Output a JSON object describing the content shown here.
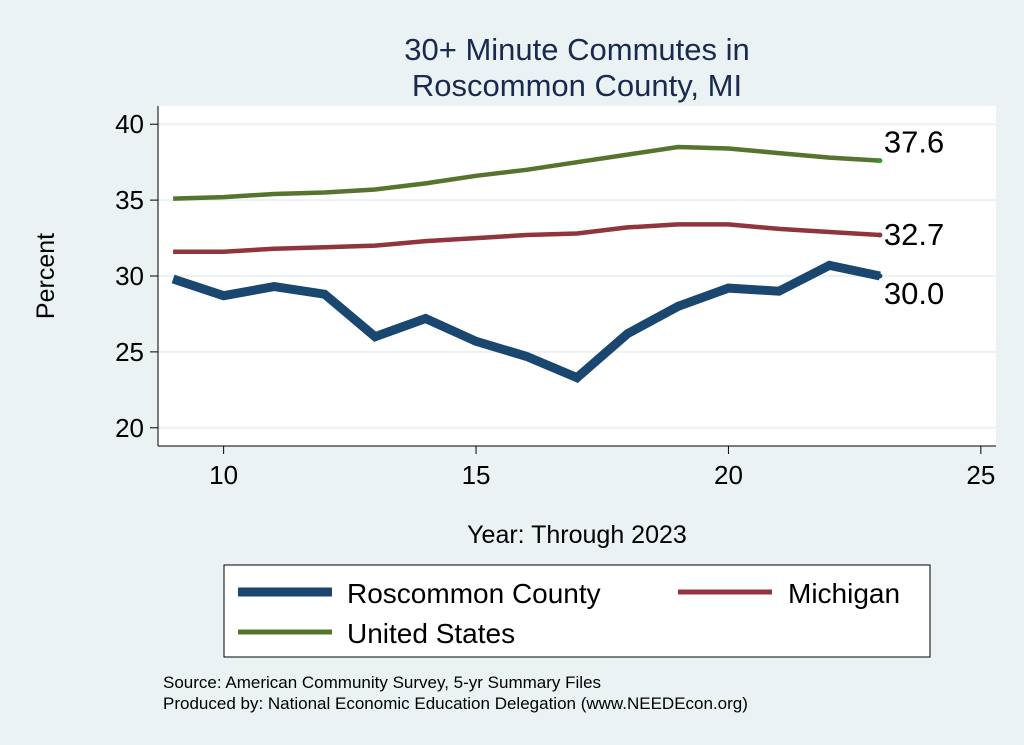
{
  "chart_data": {
    "type": "line",
    "title_lines": [
      "30+ Minute Commutes in",
      "Roscommon County, MI"
    ],
    "xlabel": "Year: Through 2023",
    "ylabel": "Percent",
    "xlim": [
      8.7,
      25.3
    ],
    "ylim": [
      18.8,
      41.2
    ],
    "xticks": [
      10,
      15,
      20,
      25
    ],
    "yticks": [
      20,
      25,
      30,
      35,
      40
    ],
    "grid": true,
    "legend_position": "bottom",
    "series": [
      {
        "name": "Roscommon County",
        "color": "#1a476f",
        "x": [
          9,
          10,
          11,
          12,
          13,
          14,
          15,
          16,
          17,
          18,
          19,
          20,
          21,
          22,
          23
        ],
        "values": [
          29.8,
          28.7,
          29.3,
          28.8,
          26.0,
          27.2,
          25.7,
          24.7,
          23.3,
          26.2,
          28.0,
          29.2,
          29.0,
          30.7,
          30.0
        ],
        "end_label": "30.0"
      },
      {
        "name": "Michigan",
        "color": "#90353b",
        "x": [
          9,
          10,
          11,
          12,
          13,
          14,
          15,
          16,
          17,
          18,
          19,
          20,
          21,
          22,
          23
        ],
        "values": [
          31.6,
          31.6,
          31.8,
          31.9,
          32.0,
          32.3,
          32.5,
          32.7,
          32.8,
          33.2,
          33.4,
          33.4,
          33.1,
          32.9,
          32.7
        ],
        "end_label": "32.7"
      },
      {
        "name": "United States",
        "color": "#55752f",
        "x": [
          9,
          10,
          11,
          12,
          13,
          14,
          15,
          16,
          17,
          18,
          19,
          20,
          21,
          22,
          23
        ],
        "values": [
          35.1,
          35.2,
          35.4,
          35.5,
          35.7,
          36.1,
          36.6,
          37.0,
          37.5,
          38.0,
          38.5,
          38.4,
          38.1,
          37.8,
          37.6
        ],
        "end_label": "37.6"
      }
    ],
    "notes": [
      "Source: American Community Survey, 5-yr Summary Files",
      "Produced by: National Economic Education Delegation (www.NEEDEcon.org)"
    ]
  }
}
